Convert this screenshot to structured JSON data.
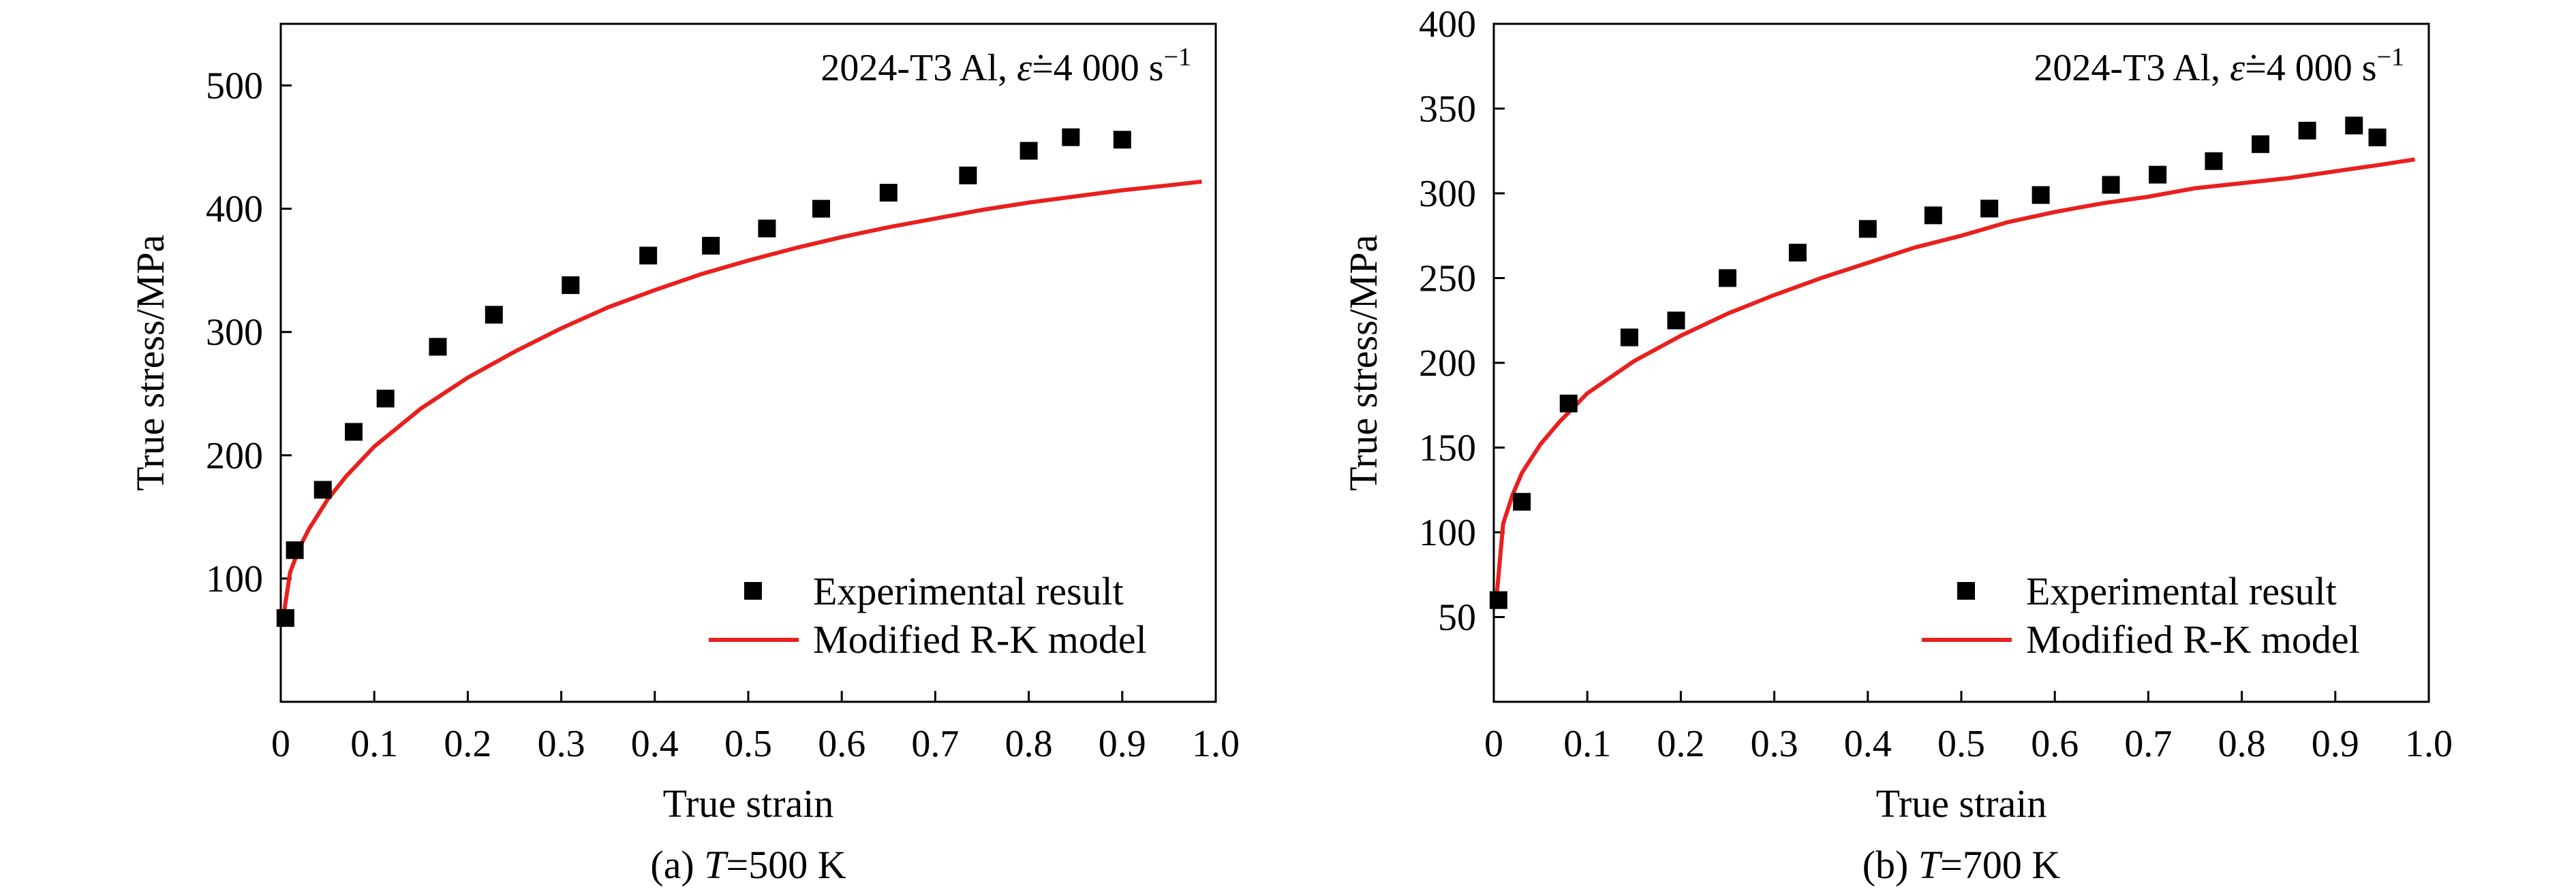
{
  "chart_data": [
    {
      "type": "scatter+line",
      "annotation": "2024-T3 Al, ε̇=4 000 s⁻¹",
      "annotation_parts": {
        "material": "2024-T3 Al, ",
        "rate_symbol": "ε̇",
        "rate_value": "=4 000 s",
        "rate_exp": "−1"
      },
      "caption": {
        "prefix": "(a) ",
        "var": "T",
        "suffix": "=500 K"
      },
      "xlabel": "True strain",
      "ylabel": "True stress/MPa",
      "xlim": [
        0,
        1.0
      ],
      "ylim": [
        0,
        550
      ],
      "xticks": [
        0,
        0.1,
        0.2,
        0.3,
        0.4,
        0.5,
        0.6,
        0.7,
        0.8,
        0.9,
        1.0
      ],
      "xtick_labels": [
        "0",
        "0.1",
        "0.2",
        "0.3",
        "0.4",
        "0.5",
        "0.6",
        "0.7",
        "0.8",
        "0.9",
        "1.0"
      ],
      "yticks": [
        100,
        200,
        300,
        400,
        500
      ],
      "ytick_labels": [
        "100",
        "200",
        "300",
        "400",
        "500"
      ],
      "legend": {
        "position": "bottom-right",
        "entries": [
          "Experimental result",
          "Modified R-K model"
        ]
      },
      "series": [
        {
          "name": "Experimental result",
          "kind": "scatter",
          "color": "#000000",
          "x": [
            0.005,
            0.015,
            0.045,
            0.078,
            0.112,
            0.168,
            0.228,
            0.31,
            0.393,
            0.46,
            0.52,
            0.578,
            0.65,
            0.735,
            0.8,
            0.845,
            0.9
          ],
          "y": [
            68,
            123,
            172,
            219,
            246,
            288,
            314,
            338,
            362,
            370,
            384,
            400,
            413,
            427,
            447,
            458,
            456
          ]
        },
        {
          "name": "Modified R-K model",
          "kind": "line",
          "color": "#e8201e",
          "x": [
            0.003,
            0.01,
            0.02,
            0.03,
            0.05,
            0.07,
            0.1,
            0.15,
            0.2,
            0.25,
            0.3,
            0.35,
            0.4,
            0.45,
            0.5,
            0.55,
            0.6,
            0.65,
            0.7,
            0.75,
            0.8,
            0.85,
            0.9,
            0.95,
            0.985
          ],
          "y": [
            70,
            105,
            125,
            140,
            164,
            183,
            207,
            238,
            263,
            284,
            303,
            320,
            334,
            347,
            358,
            368,
            377,
            385,
            392,
            399,
            405,
            410,
            415,
            419,
            422
          ]
        }
      ]
    },
    {
      "type": "scatter+line",
      "annotation": "2024-T3 Al, ε̇=4 000 s⁻¹",
      "annotation_parts": {
        "material": "2024-T3 Al, ",
        "rate_symbol": "ε̇",
        "rate_value": "=4 000 s",
        "rate_exp": "−1"
      },
      "caption": {
        "prefix": "(b) ",
        "var": "T",
        "suffix": "=700 K"
      },
      "xlabel": "True strain",
      "ylabel": "True stress/MPa",
      "xlim": [
        0,
        1.0
      ],
      "ylim": [
        0,
        400
      ],
      "xticks": [
        0,
        0.1,
        0.2,
        0.3,
        0.4,
        0.5,
        0.6,
        0.7,
        0.8,
        0.9,
        1.0
      ],
      "xtick_labels": [
        "0",
        "0.1",
        "0.2",
        "0.3",
        "0.4",
        "0.5",
        "0.6",
        "0.7",
        "0.8",
        "0.9",
        "1.0"
      ],
      "yticks": [
        50,
        100,
        150,
        200,
        250,
        300,
        350,
        400
      ],
      "ytick_labels": [
        "50",
        "100",
        "150",
        "200",
        "250",
        "300",
        "350",
        "400"
      ],
      "legend": {
        "position": "bottom-right",
        "entries": [
          "Experimental result",
          "Modified R-K model"
        ]
      },
      "series": [
        {
          "name": "Experimental result",
          "kind": "scatter",
          "color": "#000000",
          "x": [
            0.005,
            0.03,
            0.08,
            0.145,
            0.195,
            0.25,
            0.325,
            0.4,
            0.47,
            0.53,
            0.585,
            0.66,
            0.71,
            0.77,
            0.82,
            0.87,
            0.92,
            0.945
          ],
          "y": [
            60,
            118,
            176,
            215,
            225,
            250,
            265,
            279,
            287,
            291,
            299,
            305,
            311,
            319,
            329,
            337,
            340,
            333
          ]
        },
        {
          "name": "Modified R-K model",
          "kind": "line",
          "color": "#e8201e",
          "x": [
            0.003,
            0.01,
            0.02,
            0.03,
            0.05,
            0.07,
            0.1,
            0.15,
            0.2,
            0.25,
            0.3,
            0.35,
            0.4,
            0.45,
            0.5,
            0.55,
            0.6,
            0.65,
            0.7,
            0.75,
            0.8,
            0.85,
            0.9,
            0.95,
            0.985
          ],
          "y": [
            62,
            105,
            122,
            135,
            152,
            165,
            182,
            201,
            216,
            229,
            240,
            250,
            259,
            268,
            275,
            283,
            289,
            294,
            298,
            303,
            306,
            309,
            313,
            317,
            320
          ]
        }
      ]
    }
  ]
}
